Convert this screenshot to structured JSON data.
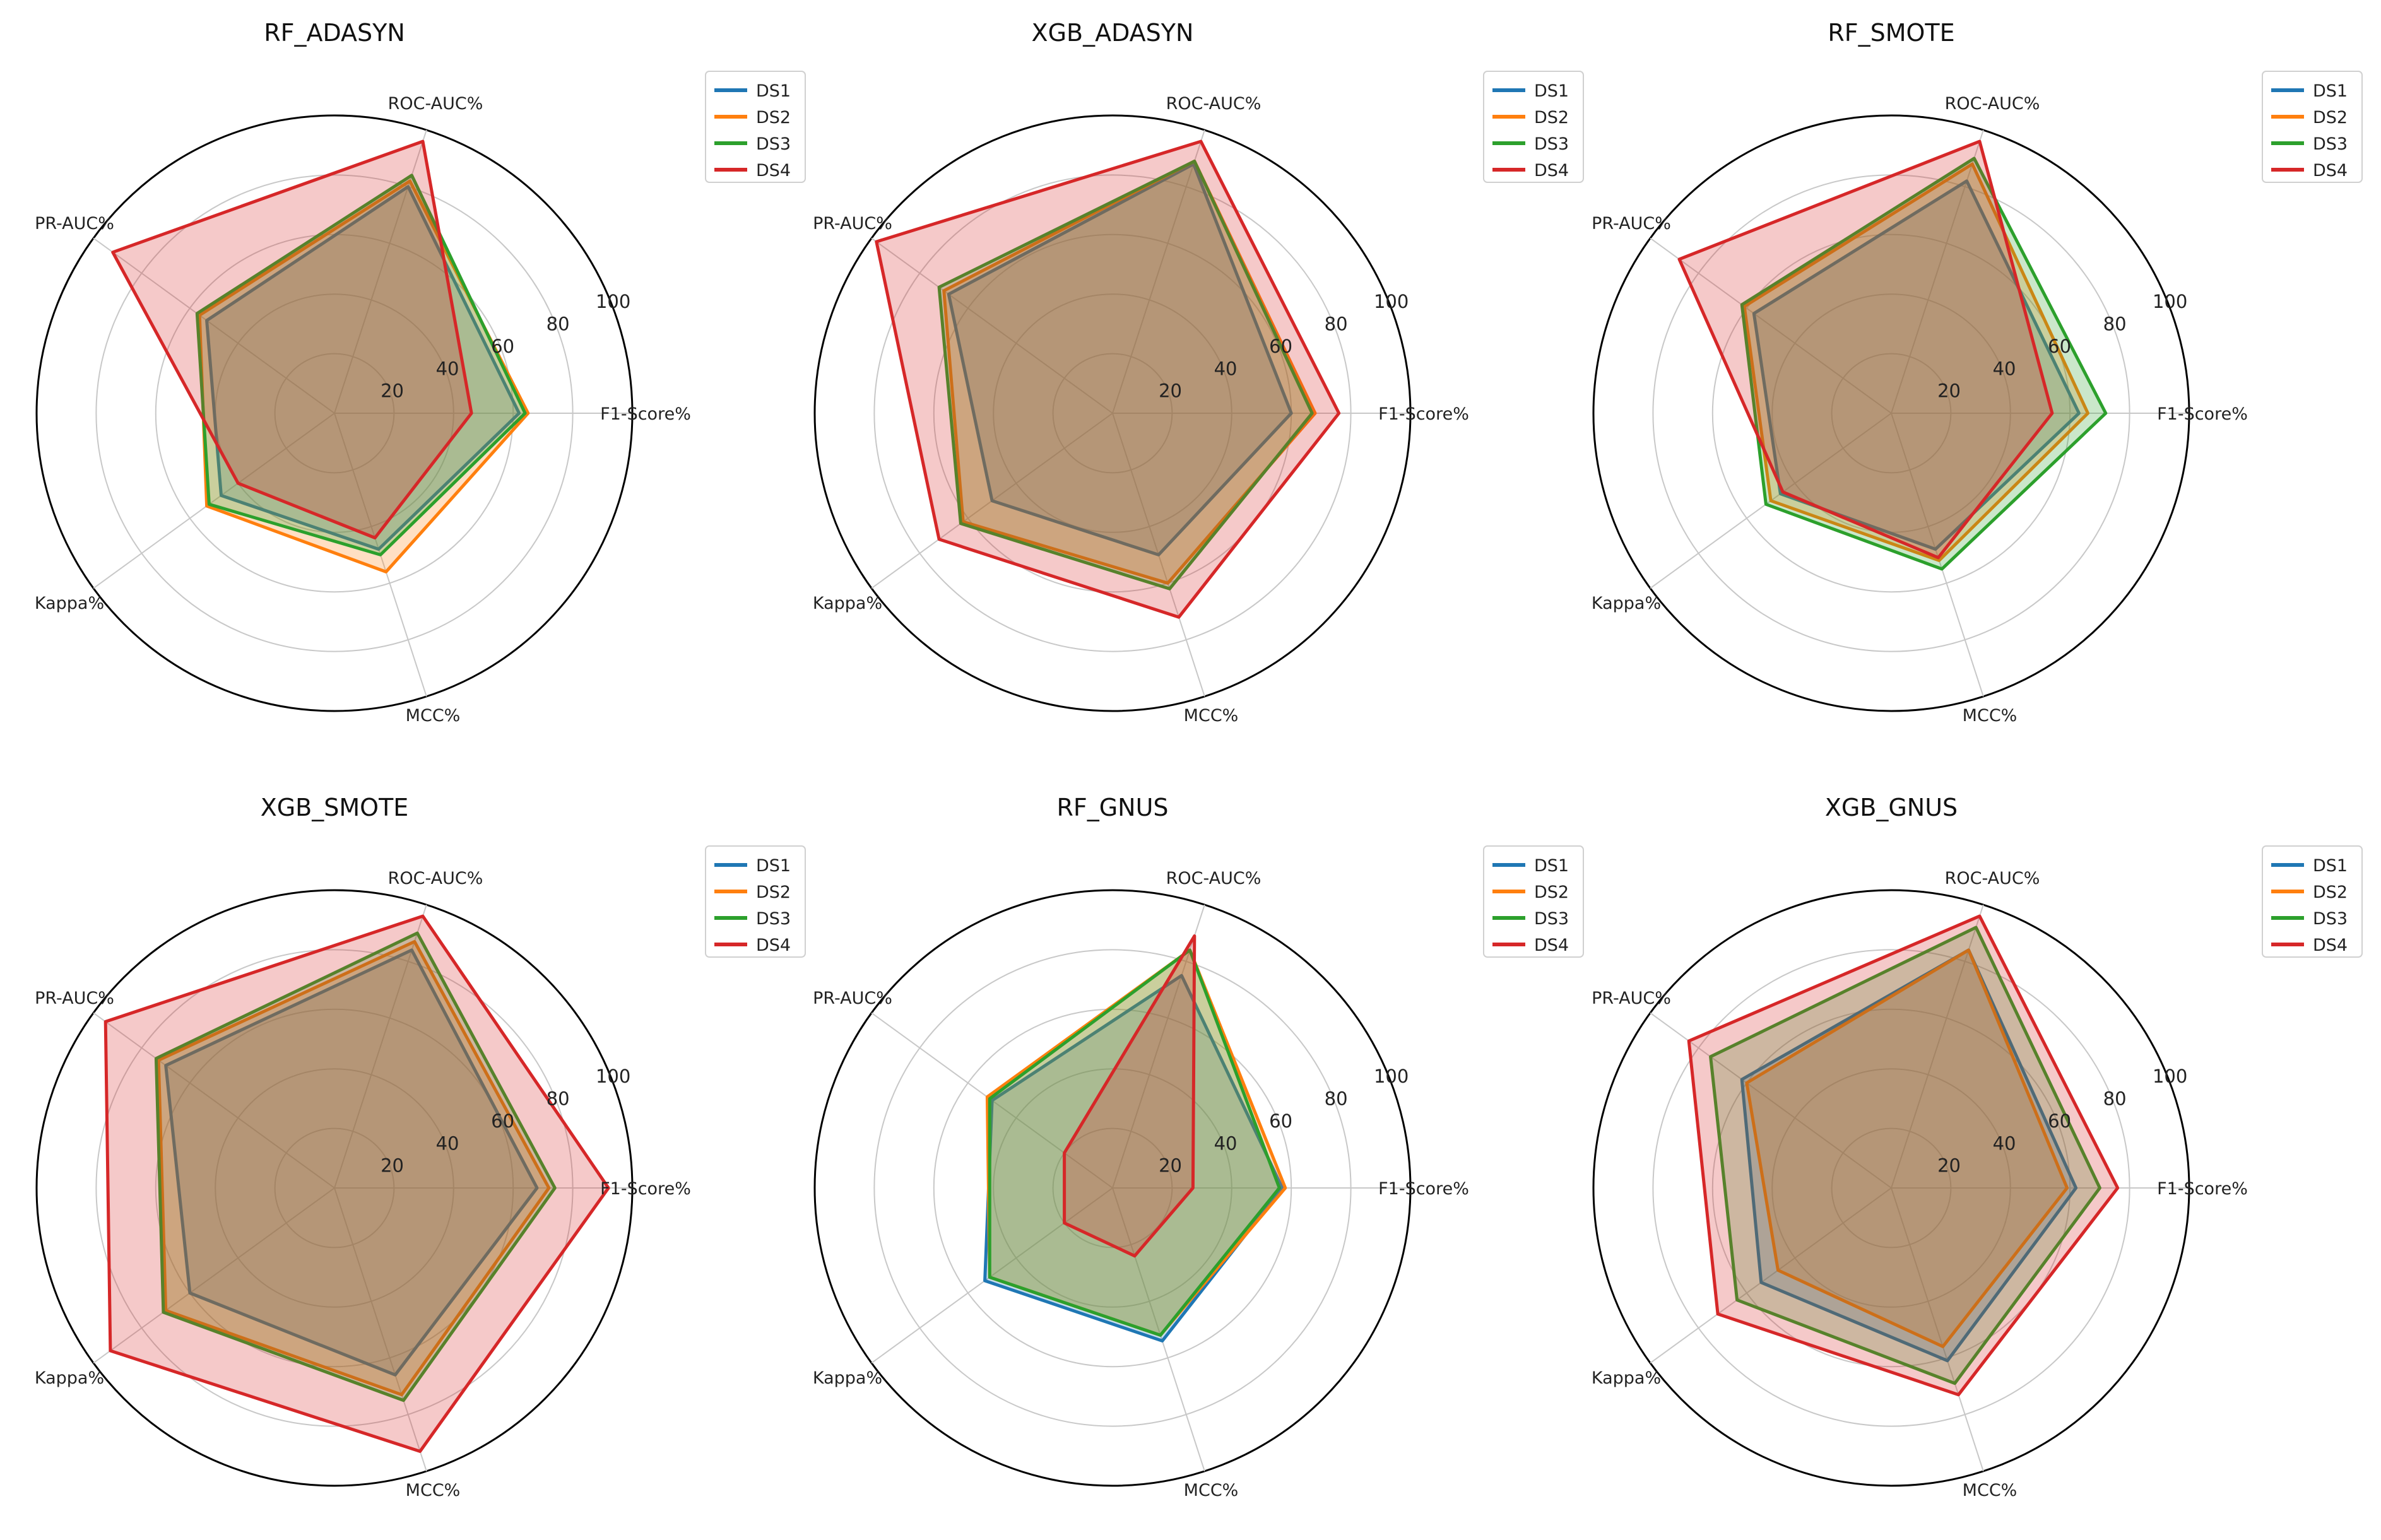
{
  "chart_data": [
    {
      "type": "radar",
      "title": "RF_ADASYN",
      "axes": [
        "F1-Score%",
        "ROC-AUC%",
        "PR-AUC%",
        "Kappa%",
        "MCC%"
      ],
      "rlim": [
        0,
        100
      ],
      "r_ticks": [
        "20",
        "40",
        "60",
        "80",
        "100"
      ],
      "legend": "top-right",
      "series": [
        {
          "name": "DS1",
          "color": "#1f77b4",
          "values": [
            62,
            80,
            53,
            47,
            48
          ]
        },
        {
          "name": "DS2",
          "color": "#ff7f0e",
          "values": [
            65,
            82,
            56,
            53,
            56
          ]
        },
        {
          "name": "DS3",
          "color": "#2ca02c",
          "values": [
            64,
            84,
            57,
            52,
            50
          ]
        },
        {
          "name": "DS4",
          "color": "#d62728",
          "values": [
            46,
            96,
            92,
            40,
            44
          ]
        }
      ]
    },
    {
      "type": "radar",
      "title": "XGB_ADASYN",
      "axes": [
        "F1-Score%",
        "ROC-AUC%",
        "PR-AUC%",
        "Kappa%",
        "MCC%"
      ],
      "rlim": [
        0,
        100
      ],
      "r_ticks": [
        "20",
        "40",
        "60",
        "80",
        "100"
      ],
      "legend": "top-right",
      "series": [
        {
          "name": "DS1",
          "color": "#1f77b4",
          "values": [
            60,
            88,
            68,
            50,
            50
          ]
        },
        {
          "name": "DS2",
          "color": "#ff7f0e",
          "values": [
            68,
            89,
            70,
            62,
            60
          ]
        },
        {
          "name": "DS3",
          "color": "#2ca02c",
          "values": [
            67,
            89,
            72,
            63,
            62
          ]
        },
        {
          "name": "DS4",
          "color": "#d62728",
          "values": [
            76,
            96,
            98,
            72,
            72
          ]
        }
      ]
    },
    {
      "type": "radar",
      "title": "RF_SMOTE",
      "axes": [
        "F1-Score%",
        "ROC-AUC%",
        "PR-AUC%",
        "Kappa%",
        "MCC%"
      ],
      "rlim": [
        0,
        100
      ],
      "r_ticks": [
        "20",
        "40",
        "60",
        "80",
        "100"
      ],
      "legend": "top-right",
      "series": [
        {
          "name": "DS1",
          "color": "#1f77b4",
          "values": [
            63,
            82,
            57,
            46,
            48
          ]
        },
        {
          "name": "DS2",
          "color": "#ff7f0e",
          "values": [
            66,
            88,
            61,
            50,
            52
          ]
        },
        {
          "name": "DS3",
          "color": "#2ca02c",
          "values": [
            72,
            90,
            62,
            52,
            55
          ]
        },
        {
          "name": "DS4",
          "color": "#d62728",
          "values": [
            54,
            96,
            88,
            45,
            51
          ]
        }
      ]
    },
    {
      "type": "radar",
      "title": "XGB_SMOTE",
      "axes": [
        "F1-Score%",
        "ROC-AUC%",
        "PR-AUC%",
        "Kappa%",
        "MCC%"
      ],
      "rlim": [
        0,
        100
      ],
      "r_ticks": [
        "20",
        "40",
        "60",
        "80",
        "100"
      ],
      "legend": "top-right",
      "series": [
        {
          "name": "DS1",
          "color": "#1f77b4",
          "values": [
            68,
            84,
            70,
            60,
            66
          ]
        },
        {
          "name": "DS2",
          "color": "#ff7f0e",
          "values": [
            72,
            87,
            73,
            70,
            73
          ]
        },
        {
          "name": "DS3",
          "color": "#2ca02c",
          "values": [
            74,
            90,
            74,
            71,
            75
          ]
        },
        {
          "name": "DS4",
          "color": "#d62728",
          "values": [
            92,
            96,
            95,
            93,
            93
          ]
        }
      ]
    },
    {
      "type": "radar",
      "title": "RF_GNUS",
      "axes": [
        "F1-Score%",
        "ROC-AUC%",
        "PR-AUC%",
        "Kappa%",
        "MCC%"
      ],
      "rlim": [
        0,
        100
      ],
      "r_ticks": [
        "20",
        "40",
        "60",
        "80",
        "100"
      ],
      "legend": "top-right",
      "series": [
        {
          "name": "DS1",
          "color": "#1f77b4",
          "values": [
            57,
            75,
            50,
            53,
            54
          ]
        },
        {
          "name": "DS2",
          "color": "#ff7f0e",
          "values": [
            58,
            84,
            52,
            51,
            52
          ]
        },
        {
          "name": "DS3",
          "color": "#2ca02c",
          "values": [
            56,
            84,
            51,
            51,
            52
          ]
        },
        {
          "name": "DS4",
          "color": "#d62728",
          "values": [
            27,
            89,
            20,
            20,
            24
          ]
        }
      ]
    },
    {
      "type": "radar",
      "title": "XGB_GNUS",
      "axes": [
        "F1-Score%",
        "ROC-AUC%",
        "PR-AUC%",
        "Kappa%",
        "MCC%"
      ],
      "rlim": [
        0,
        100
      ],
      "r_ticks": [
        "20",
        "40",
        "60",
        "80",
        "100"
      ],
      "legend": "top-right",
      "series": [
        {
          "name": "DS1",
          "color": "#1f77b4",
          "values": [
            62,
            84,
            62,
            54,
            61
          ]
        },
        {
          "name": "DS2",
          "color": "#ff7f0e",
          "values": [
            59,
            84,
            60,
            47,
            56
          ]
        },
        {
          "name": "DS3",
          "color": "#2ca02c",
          "values": [
            70,
            92,
            75,
            64,
            69
          ]
        },
        {
          "name": "DS4",
          "color": "#d62728",
          "values": [
            76,
            96,
            84,
            72,
            73
          ]
        }
      ]
    }
  ]
}
